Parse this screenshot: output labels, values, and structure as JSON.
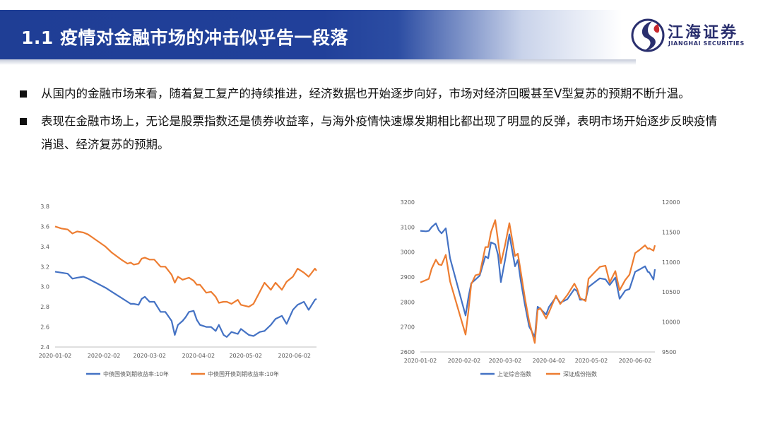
{
  "header": {
    "title": "1.1 疫情对金融市场的冲击似乎告一段落",
    "logo": {
      "name_cn": "江海证券",
      "name_en": "JIANGHAI SECURITIES",
      "color": "#2a2f6e",
      "accent": "#c8282e"
    },
    "bar_color": "#21409a"
  },
  "bullets": [
    "从国内的金融市场来看，随着复工复产的持续推进，经济数据也开始逐步向好，市场对经济回暖甚至V型复苏的预期不断升温。",
    "表现在金融市场上，无论是股票指数还是债券收益率，与海外疫情快速爆发期相比都出现了明显的反弹，表明市场开始逐步反映疫情消退、经济复苏的预期。"
  ],
  "chart_data": [
    {
      "type": "line",
      "x_ticks": [
        "2020-01-02",
        "2020-02-02",
        "2020-03-02",
        "2020-04-02",
        "2020-05-02",
        "2020-06-02"
      ],
      "y_ticks": [
        "2.4",
        "2.6",
        "2.8",
        "3.0",
        "3.2",
        "3.4",
        "3.6",
        "3.8"
      ],
      "ylim": [
        2.4,
        3.8
      ],
      "x_range": [
        "2020-01-02",
        "2020-06-16"
      ],
      "grid": false,
      "legend_position": "bottom",
      "series": [
        {
          "name": "中债国债到期收益率:10年",
          "color": "#4472c4",
          "points": [
            [
              "2020-01-02",
              3.15
            ],
            [
              "2020-01-06",
              3.14
            ],
            [
              "2020-01-10",
              3.13
            ],
            [
              "2020-01-13",
              3.08
            ],
            [
              "2020-01-16",
              3.09
            ],
            [
              "2020-01-20",
              3.1
            ],
            [
              "2020-01-23",
              3.08
            ],
            [
              "2020-02-03",
              2.99
            ],
            [
              "2020-02-07",
              2.95
            ],
            [
              "2020-02-13",
              2.89
            ],
            [
              "2020-02-17",
              2.85
            ],
            [
              "2020-02-19",
              2.83
            ],
            [
              "2020-02-21",
              2.83
            ],
            [
              "2020-02-24",
              2.82
            ],
            [
              "2020-02-26",
              2.88
            ],
            [
              "2020-02-28",
              2.9
            ],
            [
              "2020-03-02",
              2.85
            ],
            [
              "2020-03-05",
              2.85
            ],
            [
              "2020-03-09",
              2.75
            ],
            [
              "2020-03-12",
              2.75
            ],
            [
              "2020-03-16",
              2.66
            ],
            [
              "2020-03-18",
              2.52
            ],
            [
              "2020-03-20",
              2.62
            ],
            [
              "2020-03-23",
              2.66
            ],
            [
              "2020-03-25",
              2.7
            ],
            [
              "2020-03-27",
              2.75
            ],
            [
              "2020-03-30",
              2.76
            ],
            [
              "2020-04-01",
              2.67
            ],
            [
              "2020-04-03",
              2.62
            ],
            [
              "2020-04-07",
              2.6
            ],
            [
              "2020-04-10",
              2.6
            ],
            [
              "2020-04-13",
              2.56
            ],
            [
              "2020-04-15",
              2.62
            ],
            [
              "2020-04-18",
              2.52
            ],
            [
              "2020-04-20",
              2.5
            ],
            [
              "2020-04-23",
              2.55
            ],
            [
              "2020-04-27",
              2.53
            ],
            [
              "2020-04-29",
              2.58
            ],
            [
              "2020-05-04",
              2.52
            ],
            [
              "2020-05-07",
              2.51
            ],
            [
              "2020-05-11",
              2.55
            ],
            [
              "2020-05-14",
              2.56
            ],
            [
              "2020-05-18",
              2.62
            ],
            [
              "2020-05-21",
              2.68
            ],
            [
              "2020-05-25",
              2.71
            ],
            [
              "2020-05-28",
              2.63
            ],
            [
              "2020-06-01",
              2.77
            ],
            [
              "2020-06-04",
              2.82
            ],
            [
              "2020-06-08",
              2.85
            ],
            [
              "2020-06-11",
              2.77
            ],
            [
              "2020-06-15",
              2.87
            ],
            [
              "2020-06-16",
              2.88
            ]
          ]
        },
        {
          "name": "中债国开债到期收益率:10年",
          "color": "#ed7d31",
          "points": [
            [
              "2020-01-02",
              3.6
            ],
            [
              "2020-01-06",
              3.58
            ],
            [
              "2020-01-10",
              3.57
            ],
            [
              "2020-01-13",
              3.53
            ],
            [
              "2020-01-16",
              3.55
            ],
            [
              "2020-01-20",
              3.54
            ],
            [
              "2020-01-23",
              3.52
            ],
            [
              "2020-02-03",
              3.4
            ],
            [
              "2020-02-07",
              3.34
            ],
            [
              "2020-02-13",
              3.27
            ],
            [
              "2020-02-17",
              3.23
            ],
            [
              "2020-02-19",
              3.24
            ],
            [
              "2020-02-21",
              3.22
            ],
            [
              "2020-02-24",
              3.23
            ],
            [
              "2020-02-26",
              3.28
            ],
            [
              "2020-02-28",
              3.29
            ],
            [
              "2020-03-02",
              3.27
            ],
            [
              "2020-03-05",
              3.27
            ],
            [
              "2020-03-09",
              3.2
            ],
            [
              "2020-03-12",
              3.2
            ],
            [
              "2020-03-16",
              3.12
            ],
            [
              "2020-03-18",
              3.04
            ],
            [
              "2020-03-20",
              3.1
            ],
            [
              "2020-03-23",
              3.07
            ],
            [
              "2020-03-25",
              3.08
            ],
            [
              "2020-03-27",
              3.09
            ],
            [
              "2020-03-30",
              3.06
            ],
            [
              "2020-04-01",
              3.02
            ],
            [
              "2020-04-03",
              3.02
            ],
            [
              "2020-04-07",
              2.94
            ],
            [
              "2020-04-10",
              2.95
            ],
            [
              "2020-04-13",
              2.9
            ],
            [
              "2020-04-15",
              2.84
            ],
            [
              "2020-04-18",
              2.85
            ],
            [
              "2020-04-20",
              2.85
            ],
            [
              "2020-04-23",
              2.83
            ],
            [
              "2020-04-27",
              2.87
            ],
            [
              "2020-04-29",
              2.82
            ],
            [
              "2020-05-04",
              2.8
            ],
            [
              "2020-05-07",
              2.83
            ],
            [
              "2020-05-11",
              2.95
            ],
            [
              "2020-05-14",
              3.04
            ],
            [
              "2020-05-18",
              2.97
            ],
            [
              "2020-05-21",
              3.04
            ],
            [
              "2020-05-25",
              2.97
            ],
            [
              "2020-05-28",
              3.05
            ],
            [
              "2020-06-01",
              3.1
            ],
            [
              "2020-06-04",
              3.18
            ],
            [
              "2020-06-08",
              3.14
            ],
            [
              "2020-06-11",
              3.1
            ],
            [
              "2020-06-15",
              3.18
            ],
            [
              "2020-06-16",
              3.16
            ]
          ]
        }
      ]
    },
    {
      "type": "line",
      "x_ticks": [
        "2020-01-02",
        "2020-02-02",
        "2020-03-02",
        "2020-04-02",
        "2020-05-02",
        "2020-06-02"
      ],
      "y_ticks_left": [
        "2600",
        "2700",
        "2800",
        "2900",
        "3000",
        "3100",
        "3200"
      ],
      "y_ticks_right": [
        "9500",
        "10000",
        "10500",
        "11000",
        "11500",
        "12000"
      ],
      "ylim_left": [
        2600,
        3200
      ],
      "ylim_right": [
        9500,
        12000
      ],
      "x_range": [
        "2020-01-02",
        "2020-06-16"
      ],
      "grid": false,
      "legend_position": "bottom",
      "series": [
        {
          "name": "上证综合指数",
          "axis": "left",
          "color": "#4472c4",
          "points": [
            [
              "2020-01-02",
              3085
            ],
            [
              "2020-01-06",
              3083
            ],
            [
              "2020-01-08",
              3085
            ],
            [
              "2020-01-10",
              3100
            ],
            [
              "2020-01-13",
              3115
            ],
            [
              "2020-01-15",
              3088
            ],
            [
              "2020-01-17",
              3075
            ],
            [
              "2020-01-20",
              3095
            ],
            [
              "2020-01-23",
              2976
            ],
            [
              "2020-02-03",
              2746
            ],
            [
              "2020-02-05",
              2818
            ],
            [
              "2020-02-07",
              2875
            ],
            [
              "2020-02-10",
              2890
            ],
            [
              "2020-02-13",
              2906
            ],
            [
              "2020-02-17",
              2983
            ],
            [
              "2020-02-19",
              2975
            ],
            [
              "2020-02-21",
              3039
            ],
            [
              "2020-02-24",
              3031
            ],
            [
              "2020-02-26",
              2988
            ],
            [
              "2020-02-28",
              2880
            ],
            [
              "2020-03-02",
              2970
            ],
            [
              "2020-03-05",
              3071
            ],
            [
              "2020-03-09",
              2943
            ],
            [
              "2020-03-11",
              2968
            ],
            [
              "2020-03-13",
              2887
            ],
            [
              "2020-03-16",
              2789
            ],
            [
              "2020-03-19",
              2702
            ],
            [
              "2020-03-23",
              2660
            ],
            [
              "2020-03-25",
              2781
            ],
            [
              "2020-03-27",
              2772
            ],
            [
              "2020-03-31",
              2750
            ],
            [
              "2020-04-02",
              2780
            ],
            [
              "2020-04-07",
              2820
            ],
            [
              "2020-04-10",
              2797
            ],
            [
              "2020-04-15",
              2811
            ],
            [
              "2020-04-20",
              2852
            ],
            [
              "2020-04-22",
              2843
            ],
            [
              "2020-04-24",
              2809
            ],
            [
              "2020-04-28",
              2810
            ],
            [
              "2020-04-30",
              2860
            ],
            [
              "2020-05-08",
              2895
            ],
            [
              "2020-05-12",
              2891
            ],
            [
              "2020-05-15",
              2868
            ],
            [
              "2020-05-19",
              2898
            ],
            [
              "2020-05-22",
              2813
            ],
            [
              "2020-05-26",
              2846
            ],
            [
              "2020-05-29",
              2852
            ],
            [
              "2020-06-02",
              2921
            ],
            [
              "2020-06-05",
              2930
            ],
            [
              "2020-06-09",
              2943
            ],
            [
              "2020-06-11",
              2921
            ],
            [
              "2020-06-12",
              2919
            ],
            [
              "2020-06-15",
              2890
            ],
            [
              "2020-06-16",
              2931
            ]
          ]
        },
        {
          "name": "深证成份指数",
          "axis": "right",
          "color": "#ed7d31",
          "points": [
            [
              "2020-01-02",
              10660
            ],
            [
              "2020-01-06",
              10700
            ],
            [
              "2020-01-08",
              10720
            ],
            [
              "2020-01-10",
              10890
            ],
            [
              "2020-01-13",
              11040
            ],
            [
              "2020-01-15",
              10960
            ],
            [
              "2020-01-17",
              10950
            ],
            [
              "2020-01-20",
              11120
            ],
            [
              "2020-01-23",
              10680
            ],
            [
              "2020-02-03",
              9790
            ],
            [
              "2020-02-05",
              10180
            ],
            [
              "2020-02-07",
              10630
            ],
            [
              "2020-02-10",
              10780
            ],
            [
              "2020-02-13",
              10800
            ],
            [
              "2020-02-17",
              11250
            ],
            [
              "2020-02-19",
              11250
            ],
            [
              "2020-02-21",
              11500
            ],
            [
              "2020-02-24",
              11700
            ],
            [
              "2020-02-26",
              11350
            ],
            [
              "2020-02-28",
              10980
            ],
            [
              "2020-03-02",
              11290
            ],
            [
              "2020-03-05",
              11650
            ],
            [
              "2020-03-09",
              11100
            ],
            [
              "2020-03-11",
              11140
            ],
            [
              "2020-03-13",
              10850
            ],
            [
              "2020-03-16",
              10400
            ],
            [
              "2020-03-19",
              10010
            ],
            [
              "2020-03-23",
              9650
            ],
            [
              "2020-03-25",
              10200
            ],
            [
              "2020-03-27",
              10230
            ],
            [
              "2020-03-31",
              10060
            ],
            [
              "2020-04-02",
              10160
            ],
            [
              "2020-04-07",
              10440
            ],
            [
              "2020-04-10",
              10300
            ],
            [
              "2020-04-15",
              10450
            ],
            [
              "2020-04-20",
              10640
            ],
            [
              "2020-04-22",
              10550
            ],
            [
              "2020-04-24",
              10400
            ],
            [
              "2020-04-28",
              10350
            ],
            [
              "2020-04-30",
              10720
            ],
            [
              "2020-05-08",
              10920
            ],
            [
              "2020-05-12",
              10940
            ],
            [
              "2020-05-15",
              10660
            ],
            [
              "2020-05-19",
              10850
            ],
            [
              "2020-05-22",
              10530
            ],
            [
              "2020-05-26",
              10700
            ],
            [
              "2020-05-29",
              10790
            ],
            [
              "2020-06-02",
              11150
            ],
            [
              "2020-06-05",
              11200
            ],
            [
              "2020-06-09",
              11280
            ],
            [
              "2020-06-11",
              11220
            ],
            [
              "2020-06-12",
              11230
            ],
            [
              "2020-06-15",
              11190
            ],
            [
              "2020-06-16",
              11280
            ]
          ]
        }
      ]
    }
  ]
}
